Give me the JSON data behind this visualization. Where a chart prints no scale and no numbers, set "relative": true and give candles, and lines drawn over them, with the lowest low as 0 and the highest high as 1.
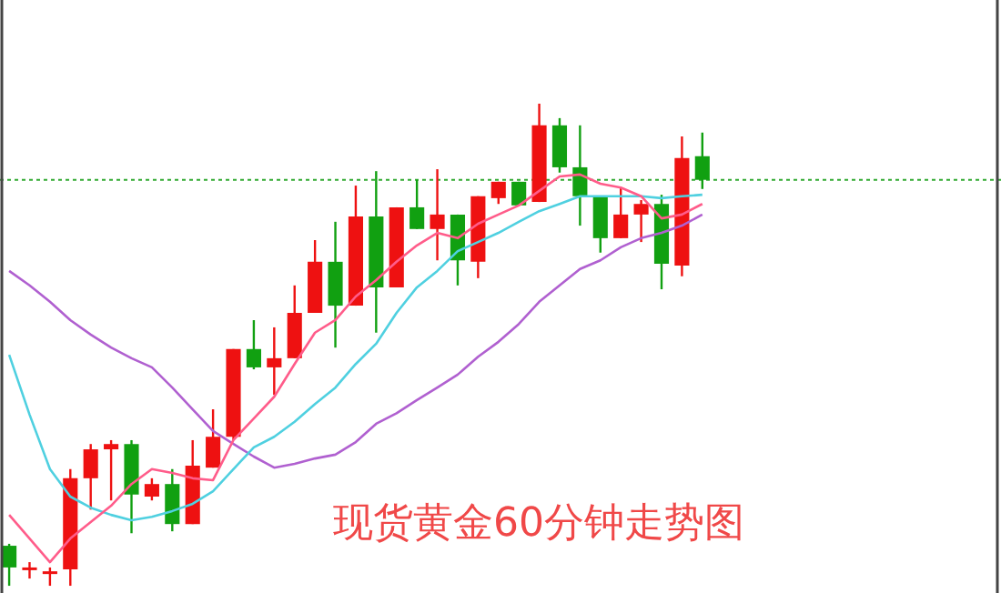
{
  "chart_data": {
    "type": "candlestick",
    "title": "现货黄金60分钟走势图",
    "relative": true,
    "legend": false,
    "categories": [
      null,
      null,
      null,
      null,
      null,
      null,
      null,
      null,
      null,
      null,
      null,
      null,
      null,
      null,
      null,
      null,
      null,
      null,
      null,
      null,
      null,
      null,
      null,
      null,
      null,
      null,
      null,
      null,
      null,
      null,
      null,
      null,
      null,
      null,
      null
    ],
    "ohlc": [
      [
        0.083,
        0.087,
        0,
        0.038
      ],
      [
        0.036,
        0.049,
        0.015,
        0.038
      ],
      [
        0.028,
        0.038,
        0,
        0.03
      ],
      [
        0.034,
        0.242,
        0,
        0.223
      ],
      [
        0.223,
        0.294,
        0.158,
        0.283
      ],
      [
        0.283,
        0.302,
        0.177,
        0.294
      ],
      [
        0.294,
        0.302,
        0.109,
        0.189
      ],
      [
        0.185,
        0.223,
        0.177,
        0.211
      ],
      [
        0.211,
        0.242,
        0.113,
        0.128
      ],
      [
        0.128,
        0.302,
        0.128,
        0.249
      ],
      [
        0.245,
        0.366,
        0.245,
        0.309
      ],
      [
        0.309,
        0.491,
        0.302,
        0.491
      ],
      [
        0.491,
        0.551,
        0.449,
        0.453
      ],
      [
        0.453,
        0.536,
        0.396,
        0.472
      ],
      [
        0.472,
        0.623,
        0.472,
        0.566
      ],
      [
        0.566,
        0.717,
        0.566,
        0.672
      ],
      [
        0.672,
        0.755,
        0.494,
        0.581
      ],
      [
        0.581,
        0.83,
        0.581,
        0.766
      ],
      [
        0.766,
        0.86,
        0.525,
        0.619
      ],
      [
        0.619,
        0.785,
        0.619,
        0.785
      ],
      [
        0.785,
        0.842,
        0.74,
        0.74
      ],
      [
        0.74,
        0.864,
        0.675,
        0.77
      ],
      [
        0.77,
        0.77,
        0.623,
        0.675
      ],
      [
        0.672,
        0.808,
        0.638,
        0.808
      ],
      [
        0.804,
        0.838,
        0.792,
        0.838
      ],
      [
        0.838,
        0.838,
        0.789,
        0.789
      ],
      [
        0.796,
        1,
        0.796,
        0.955
      ],
      [
        0.955,
        0.97,
        0.857,
        0.868
      ],
      [
        0.868,
        0.955,
        0.747,
        0.808
      ],
      [
        0.808,
        0.808,
        0.691,
        0.721
      ],
      [
        0.721,
        0.826,
        0.721,
        0.77
      ],
      [
        0.77,
        0.8,
        0.713,
        0.792
      ],
      [
        0.792,
        0.811,
        0.615,
        0.668
      ],
      [
        0.664,
        0.932,
        0.642,
        0.887
      ],
      [
        0.891,
        0.94,
        0.823,
        0.842
      ]
    ],
    "series": [
      {
        "type": "line",
        "color": "#ff5c8a",
        "values": [
          0.147,
          0.098,
          0.049,
          0.098,
          0.132,
          0.166,
          0.211,
          0.242,
          0.234,
          0.223,
          0.219,
          0.302,
          0.347,
          0.392,
          0.46,
          0.525,
          0.551,
          0.6,
          0.634,
          0.672,
          0.706,
          0.732,
          0.721,
          0.751,
          0.77,
          0.789,
          0.819,
          0.849,
          0.853,
          0.834,
          0.826,
          0.808,
          0.762,
          0.77,
          0.792
        ]
      },
      {
        "type": "line",
        "color": "#4fd0e0",
        "values": [
          0.479,
          0.355,
          0.242,
          0.185,
          0.162,
          0.147,
          0.136,
          0.143,
          0.155,
          0.17,
          0.196,
          0.242,
          0.287,
          0.309,
          0.34,
          0.377,
          0.411,
          0.46,
          0.502,
          0.566,
          0.619,
          0.653,
          0.694,
          0.713,
          0.732,
          0.755,
          0.777,
          0.792,
          0.808,
          0.808,
          0.808,
          0.808,
          0.804,
          0.808,
          0.811
        ]
      },
      {
        "type": "line",
        "color": "#b060d0",
        "values": [
          0.653,
          0.623,
          0.589,
          0.551,
          0.521,
          0.494,
          0.472,
          0.453,
          0.411,
          0.366,
          0.321,
          0.294,
          0.268,
          0.245,
          0.253,
          0.264,
          0.272,
          0.298,
          0.336,
          0.358,
          0.385,
          0.411,
          0.438,
          0.475,
          0.506,
          0.543,
          0.589,
          0.623,
          0.657,
          0.675,
          0.702,
          0.721,
          0.732,
          0.747,
          0.77
        ]
      }
    ],
    "ref_lines": [
      {
        "axis": "y",
        "value": 0.842,
        "color": "#33aa33",
        "line_style": "dotted"
      }
    ]
  }
}
